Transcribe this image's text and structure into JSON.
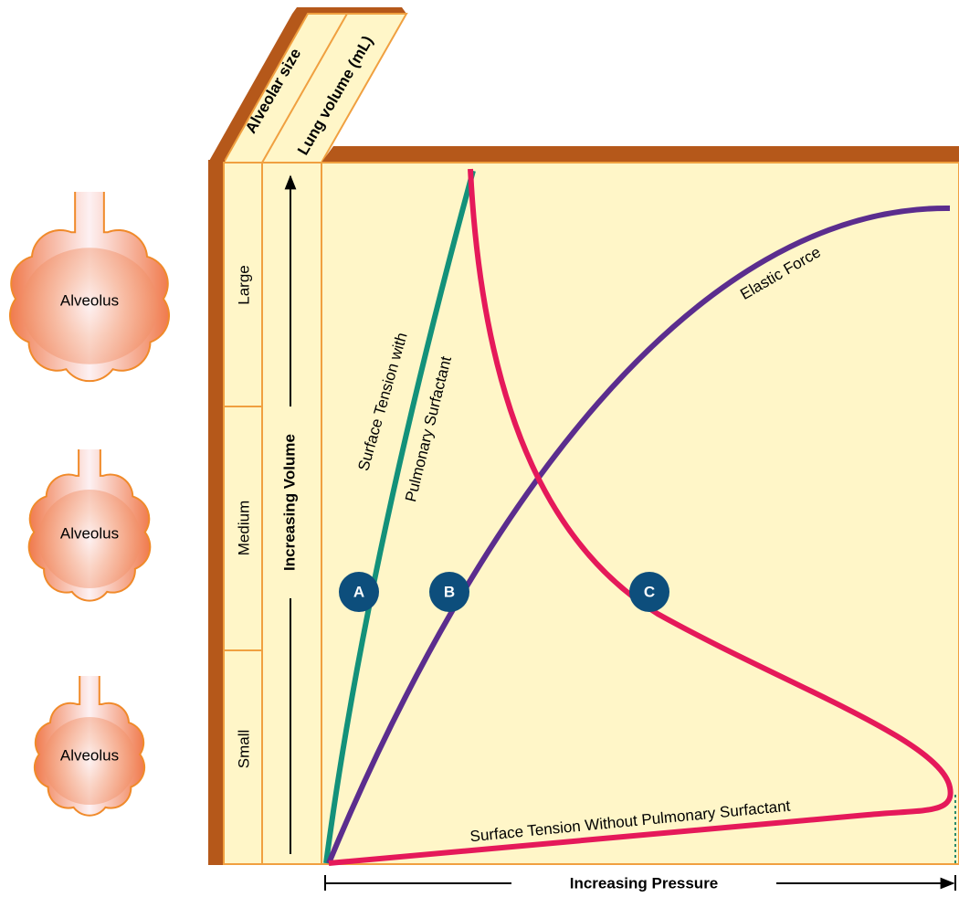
{
  "header": {
    "alveolar_size": "Alveolar size",
    "lung_volume": "Lung volume (mL)"
  },
  "size_labels": [
    "Large",
    "Medium",
    "Small"
  ],
  "alveolus_labels": [
    "Alveolus",
    "Alveolus",
    "Alveolus"
  ],
  "axes": {
    "y": "Increasing Volume",
    "x": "Increasing Pressure"
  },
  "curves": {
    "with_surfactant": [
      "Surface Tension with",
      "Pulmonary Surfactant"
    ],
    "elastic": "Elastic Force",
    "without_surfactant": "Surface Tension Without Pulmonary Surfactant"
  },
  "points": [
    "A",
    "B",
    "C"
  ]
}
